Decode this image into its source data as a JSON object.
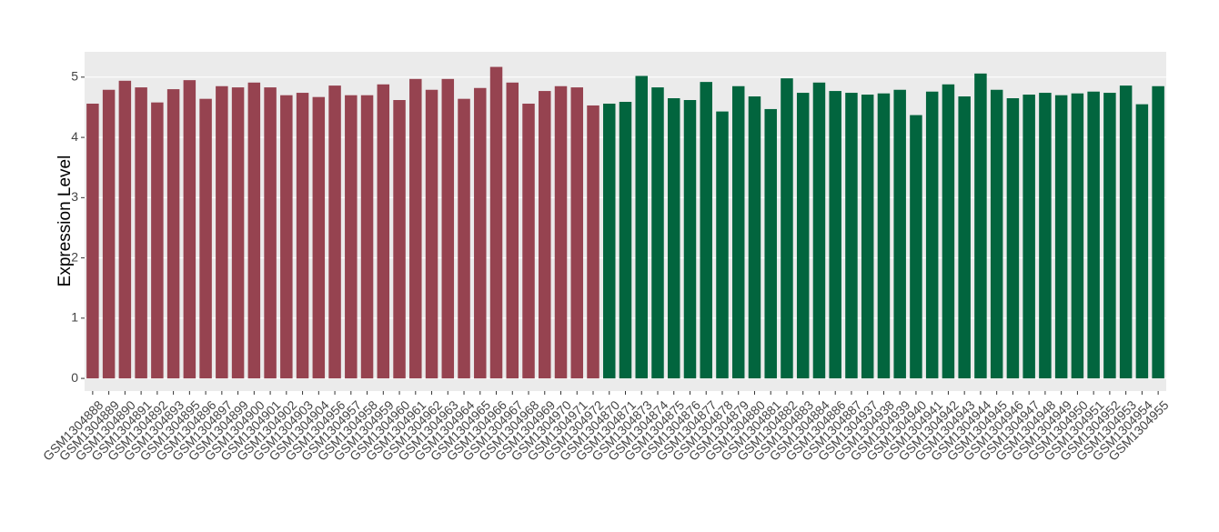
{
  "chart_data": {
    "type": "bar",
    "y_label": "Expression Level",
    "categories": [
      "GSM1304888",
      "GSM1304889",
      "GSM1304890",
      "GSM1304891",
      "GSM1304892",
      "GSM1304893",
      "GSM1304895",
      "GSM1304896",
      "GSM1304897",
      "GSM1304899",
      "GSM1304900",
      "GSM1304901",
      "GSM1304902",
      "GSM1304903",
      "GSM1304904",
      "GSM1304956",
      "GSM1304957",
      "GSM1304958",
      "GSM1304959",
      "GSM1304960",
      "GSM1304961",
      "GSM1304962",
      "GSM1304963",
      "GSM1304964",
      "GSM1304965",
      "GSM1304966",
      "GSM1304967",
      "GSM1304968",
      "GSM1304969",
      "GSM1304970",
      "GSM1304971",
      "GSM1304972",
      "GSM1304870",
      "GSM1304871",
      "GSM1304873",
      "GSM1304874",
      "GSM1304875",
      "GSM1304876",
      "GSM1304877",
      "GSM1304878",
      "GSM1304879",
      "GSM1304880",
      "GSM1304881",
      "GSM1304882",
      "GSM1304883",
      "GSM1304884",
      "GSM1304886",
      "GSM1304887",
      "GSM1304937",
      "GSM1304938",
      "GSM1304939",
      "GSM1304940",
      "GSM1304941",
      "GSM1304942",
      "GSM1304943",
      "GSM1304944",
      "GSM1304945",
      "GSM1304946",
      "GSM1304947",
      "GSM1304948",
      "GSM1304949",
      "GSM1304950",
      "GSM1304951",
      "GSM1304952",
      "GSM1304953",
      "GSM1304954",
      "GSM1304955"
    ],
    "values": [
      4.56,
      4.79,
      4.94,
      4.83,
      4.58,
      4.8,
      4.95,
      4.64,
      4.85,
      4.83,
      4.91,
      4.83,
      4.7,
      4.74,
      4.67,
      4.86,
      4.7,
      4.7,
      4.88,
      4.62,
      4.97,
      4.79,
      4.97,
      4.64,
      4.82,
      5.17,
      4.91,
      4.56,
      4.77,
      4.85,
      4.83,
      4.53,
      4.56,
      4.59,
      5.02,
      4.83,
      4.65,
      4.62,
      4.92,
      4.43,
      4.85,
      4.68,
      4.47,
      4.98,
      4.74,
      4.91,
      4.77,
      4.74,
      4.71,
      4.73,
      4.79,
      4.37,
      4.76,
      4.88,
      4.68,
      5.06,
      4.79,
      4.65,
      4.71,
      4.74,
      4.7,
      4.73,
      4.76,
      4.74,
      4.86,
      4.55,
      4.85
    ],
    "colors": [
      "#964350",
      "#964350",
      "#964350",
      "#964350",
      "#964350",
      "#964350",
      "#964350",
      "#964350",
      "#964350",
      "#964350",
      "#964350",
      "#964350",
      "#964350",
      "#964350",
      "#964350",
      "#964350",
      "#964350",
      "#964350",
      "#964350",
      "#964350",
      "#964350",
      "#964350",
      "#964350",
      "#964350",
      "#964350",
      "#964350",
      "#964350",
      "#964350",
      "#964350",
      "#964350",
      "#964350",
      "#964350",
      "#02653e",
      "#02653e",
      "#02653e",
      "#02653e",
      "#02653e",
      "#02653e",
      "#02653e",
      "#02653e",
      "#02653e",
      "#02653e",
      "#02653e",
      "#02653e",
      "#02653e",
      "#02653e",
      "#02653e",
      "#02653e",
      "#02653e",
      "#02653e",
      "#02653e",
      "#02653e",
      "#02653e",
      "#02653e",
      "#02653e",
      "#02653e",
      "#02653e",
      "#02653e",
      "#02653e",
      "#02653e",
      "#02653e",
      "#02653e",
      "#02653e",
      "#02653e",
      "#02653e",
      "#02653e",
      "#02653e"
    ],
    "ylim": [
      -0.21,
      5.42
    ],
    "yticks": [
      0,
      1,
      2,
      3,
      4,
      5
    ],
    "grid": true
  }
}
